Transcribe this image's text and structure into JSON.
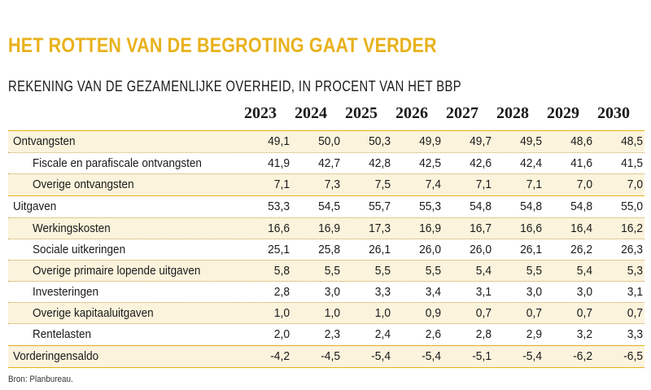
{
  "title": "HET ROTTEN VAN DE BEGROTING GAAT VERDER",
  "subtitle": "REKENING VAN DE GEZAMENLIJKE OVERHEID, IN PROCENT VAN HET BBP",
  "years": [
    "2023",
    "2024",
    "2025",
    "2026",
    "2027",
    "2028",
    "2029",
    "2030"
  ],
  "rows": [
    {
      "label": "Ontvangsten",
      "values": [
        "49,1",
        "50,0",
        "50,3",
        "49,9",
        "49,7",
        "49,5",
        "48,6",
        "48,5"
      ]
    },
    {
      "label": "Fiscale en parafiscale ontvangsten",
      "values": [
        "41,9",
        "42,7",
        "42,8",
        "42,5",
        "42,6",
        "42,4",
        "41,6",
        "41,5"
      ]
    },
    {
      "label": "Overige ontvangsten",
      "values": [
        "7,1",
        "7,3",
        "7,5",
        "7,4",
        "7,1",
        "7,1",
        "7,0",
        "7,0"
      ]
    },
    {
      "label": "Uitgaven",
      "values": [
        "53,3",
        "54,5",
        "55,7",
        "55,3",
        "54,8",
        "54,8",
        "54,8",
        "55,0"
      ]
    },
    {
      "label": "Werkingskosten",
      "values": [
        "16,6",
        "16,9",
        "17,3",
        "16,9",
        "16,7",
        "16,6",
        "16,4",
        "16,2"
      ]
    },
    {
      "label": "Sociale uitkeringen",
      "values": [
        "25,1",
        "25,8",
        "26,1",
        "26,0",
        "26,0",
        "26,1",
        "26,2",
        "26,3"
      ]
    },
    {
      "label": "Overige primaire lopende uitgaven",
      "values": [
        "5,8",
        "5,5",
        "5,5",
        "5,5",
        "5,4",
        "5,5",
        "5,4",
        "5,3"
      ]
    },
    {
      "label": "Investeringen",
      "values": [
        "2,8",
        "3,0",
        "3,3",
        "3,4",
        "3,1",
        "3,0",
        "3,0",
        "3,1"
      ]
    },
    {
      "label": "Overige kapitaaluitgaven",
      "values": [
        "1,0",
        "1,0",
        "1,0",
        "0,9",
        "0,7",
        "0,7",
        "0,7",
        "0,7"
      ]
    },
    {
      "label": "Rentelasten",
      "values": [
        "2,0",
        "2,3",
        "2,4",
        "2,6",
        "2,8",
        "2,9",
        "3,2",
        "3,3"
      ]
    },
    {
      "label": "Vorderingensaldo",
      "values": [
        "-4,2",
        "-4,5",
        "-5,4",
        "-5,4",
        "-5,1",
        "-5,4",
        "-6,2",
        "-6,5"
      ]
    }
  ],
  "source": "Bron: Planbureau.",
  "colors": {
    "accent": "#e8b11c",
    "shade": "#fbf3dc"
  }
}
